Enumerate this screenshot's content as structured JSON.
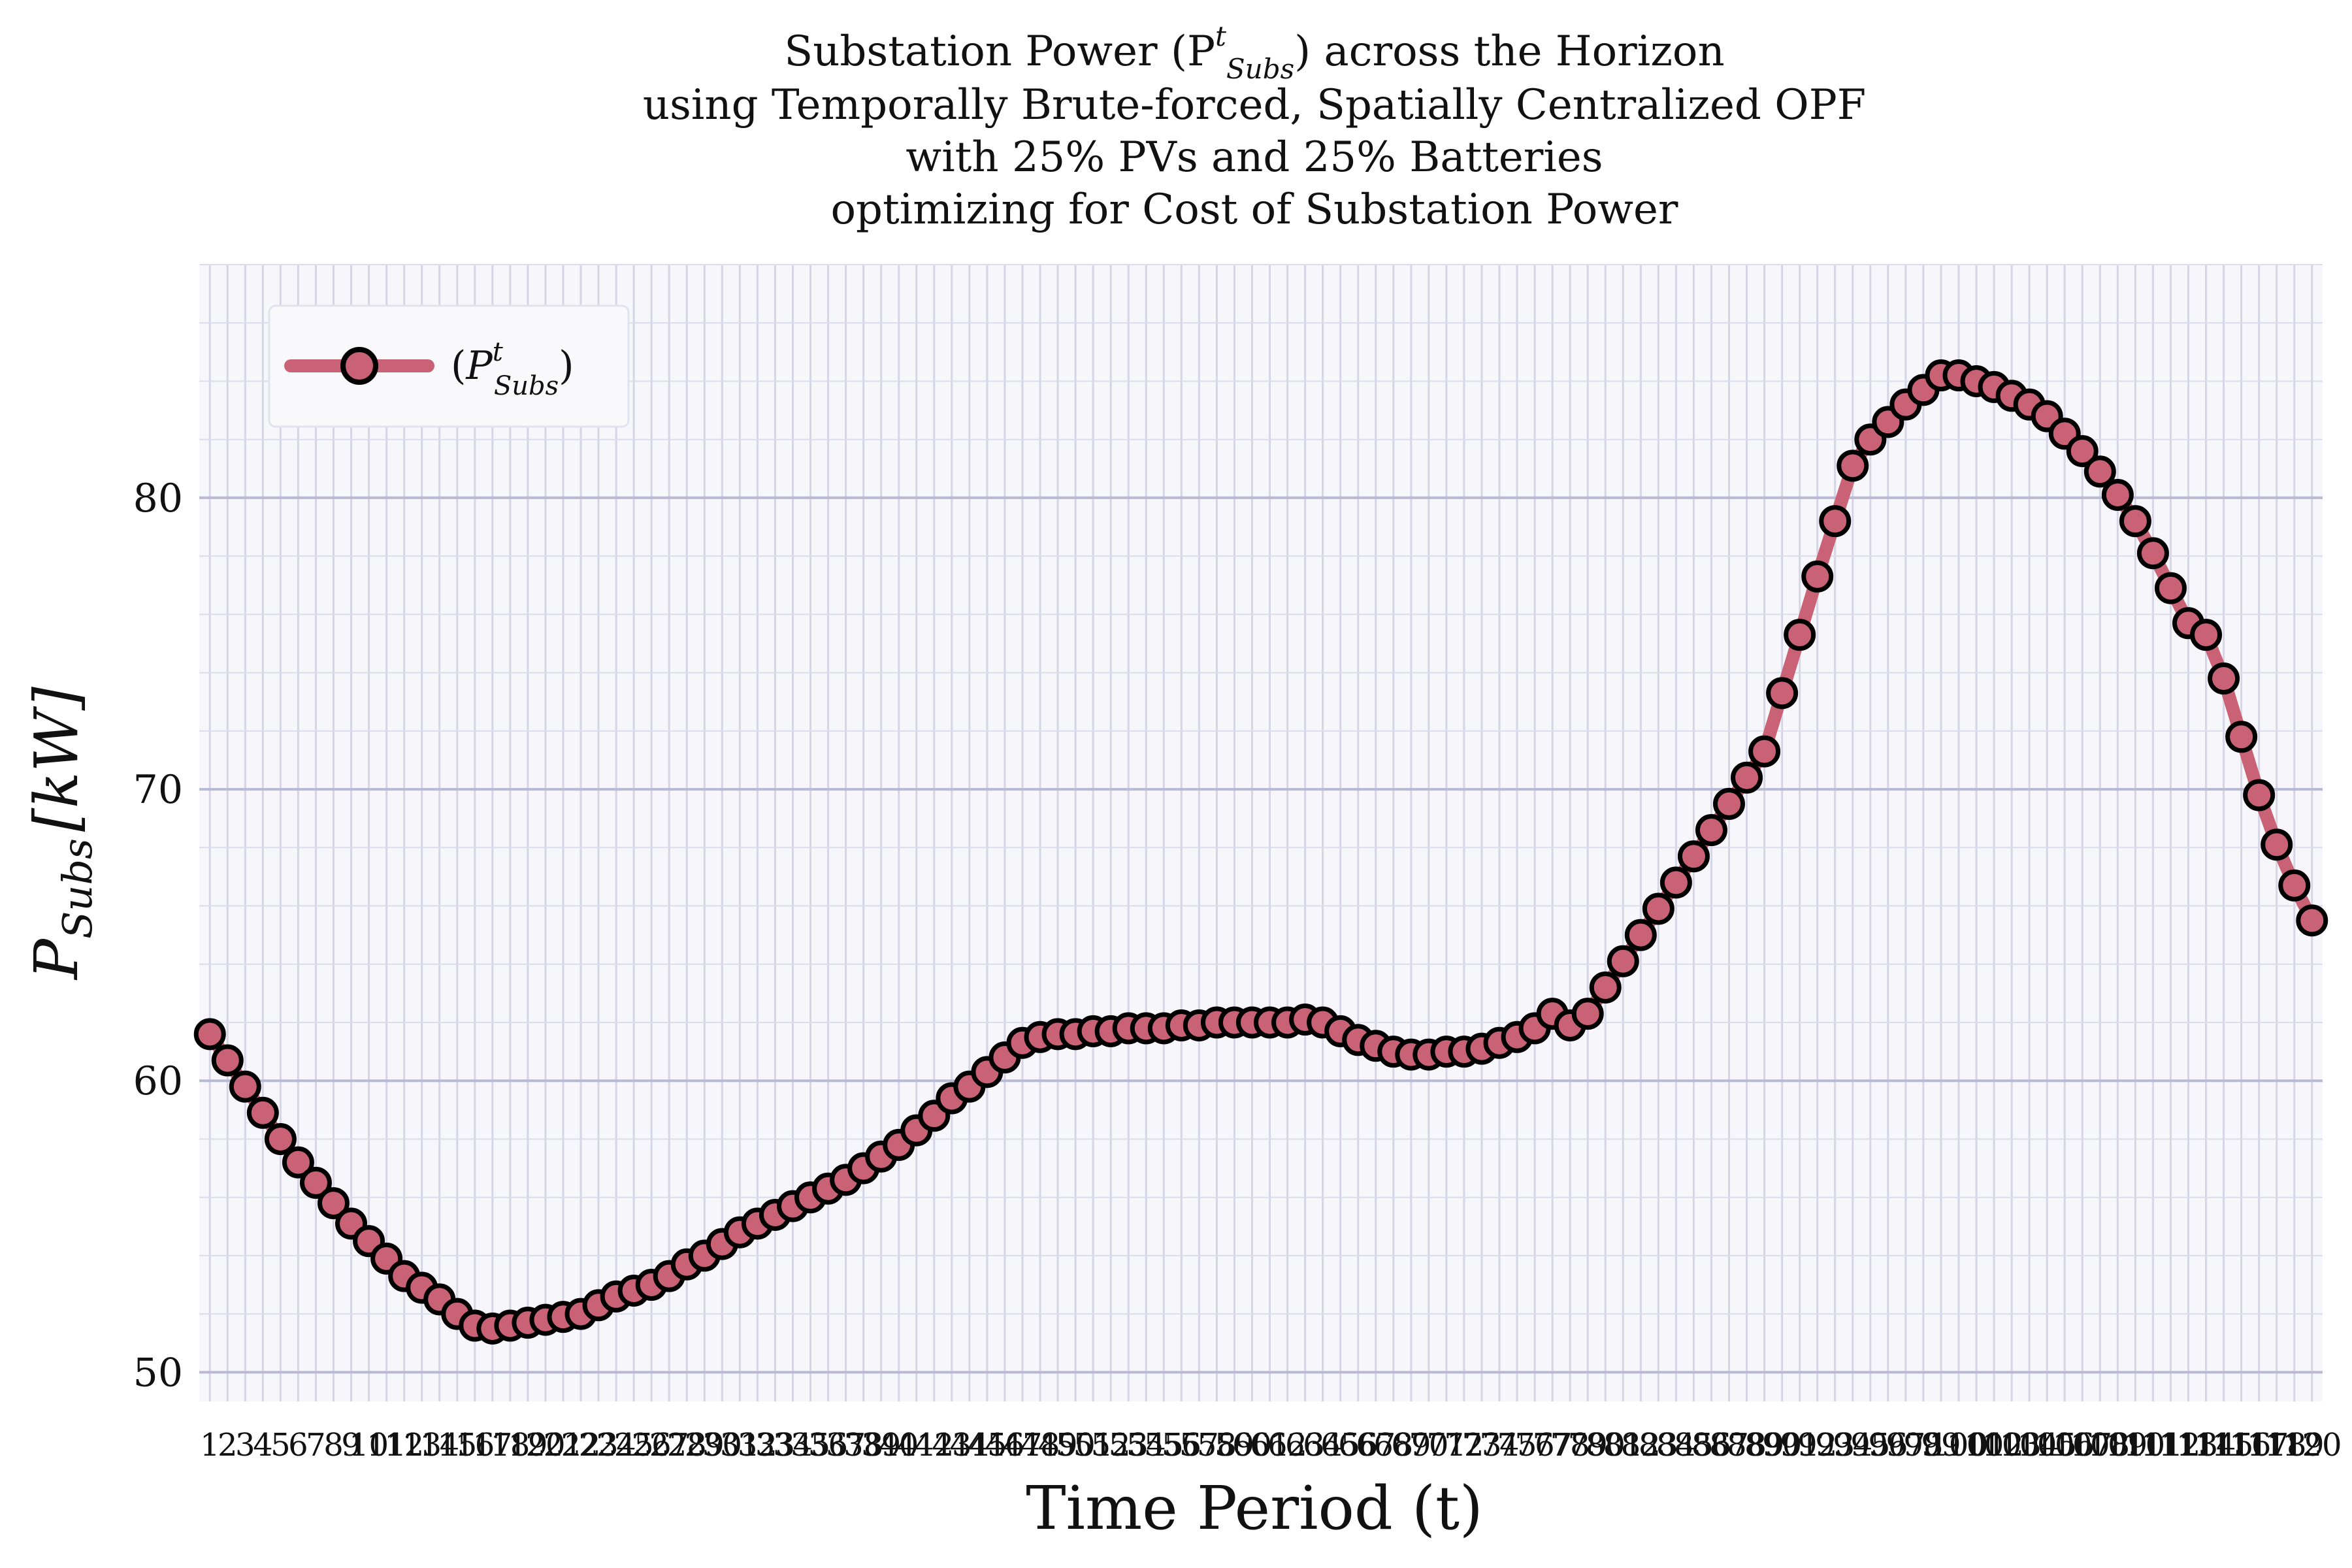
{
  "chart_data": {
    "type": "line",
    "title": [
      "Substation Power (P",
      "t",
      "Subs",
      ") across the Horizon",
      "using Temporally Brute-forced, Spatially Centralized OPF",
      "with 25% PVs and 25% Batteries",
      "optimizing for Cost of Substation Power"
    ],
    "xlabel": "Time Period (t)",
    "ylabel": "P",
    "ylabel_sub": "Subs",
    "ylabel_unit": "[kW]",
    "ylim": [
      49,
      88
    ],
    "yticks": [
      50,
      60,
      70,
      80
    ],
    "grid": true,
    "legend_placement": "top-left",
    "colors": {
      "line": "#c96274",
      "marker_edge": "#000000",
      "plot_bg": "#f6f6fb",
      "grid_major": "#b9b9d4",
      "grid_minor": "#dcdcea"
    },
    "series": [
      {
        "name": "(P^t_Subs)",
        "x": [
          1,
          2,
          3,
          4,
          5,
          6,
          7,
          8,
          9,
          10,
          11,
          12,
          13,
          14,
          15,
          16,
          17,
          18,
          19,
          20,
          21,
          22,
          23,
          24,
          25,
          26,
          27,
          28,
          29,
          30,
          31,
          32,
          33,
          34,
          35,
          36,
          37,
          38,
          39,
          40,
          41,
          42,
          43,
          44,
          45,
          46,
          47,
          48,
          49,
          50,
          51,
          52,
          53,
          54,
          55,
          56,
          57,
          58,
          59,
          60,
          61,
          62,
          63,
          64,
          65,
          66,
          67,
          68,
          69,
          70,
          71,
          72,
          73,
          74,
          75,
          76,
          77,
          78,
          79,
          80,
          81,
          82,
          83,
          84,
          85,
          86,
          87,
          88,
          89,
          90,
          91,
          92,
          93,
          94,
          95,
          96,
          97,
          98,
          99,
          100,
          101,
          102,
          103,
          104,
          105,
          106,
          107,
          108,
          109,
          110,
          111,
          112,
          113,
          114,
          115,
          116,
          117,
          118,
          119,
          120
        ],
        "values": [
          61.6,
          60.7,
          59.8,
          58.9,
          58.0,
          57.2,
          56.5,
          55.8,
          55.1,
          54.5,
          53.9,
          53.3,
          52.9,
          52.5,
          52.0,
          51.6,
          51.5,
          51.6,
          51.7,
          51.8,
          51.9,
          52.0,
          52.3,
          52.6,
          52.8,
          53.0,
          53.3,
          53.7,
          54.0,
          54.4,
          54.8,
          55.1,
          55.4,
          55.7,
          56.0,
          56.3,
          56.6,
          57.0,
          57.4,
          57.8,
          58.3,
          58.8,
          59.4,
          59.8,
          60.3,
          60.8,
          61.3,
          61.5,
          61.6,
          61.6,
          61.7,
          61.7,
          61.8,
          61.8,
          61.8,
          61.9,
          61.9,
          62.0,
          62.0,
          62.0,
          62.0,
          62.0,
          62.1,
          62.0,
          61.7,
          61.4,
          61.2,
          61.0,
          60.9,
          60.9,
          61.0,
          61.0,
          61.1,
          61.3,
          61.5,
          61.8,
          62.3,
          61.9,
          62.3,
          63.2,
          64.1,
          65.0,
          65.9,
          66.8,
          67.7,
          68.6,
          69.5,
          70.4,
          71.3,
          73.3,
          75.3,
          77.3,
          79.2,
          81.1,
          82.0,
          82.6,
          83.2,
          83.7,
          84.2,
          84.2,
          84.0,
          83.8,
          83.5,
          83.2,
          82.8,
          82.2,
          81.6,
          80.9,
          80.1,
          79.2,
          78.1,
          76.9,
          75.7,
          75.3,
          73.8,
          71.8,
          69.8,
          68.1,
          66.7,
          65.5
        ]
      }
    ]
  }
}
